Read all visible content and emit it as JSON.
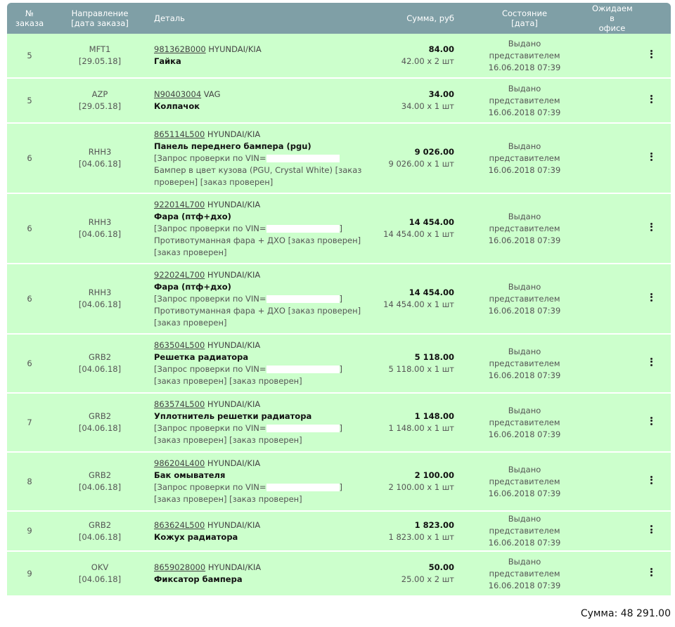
{
  "header": {
    "num": "№\nзаказа",
    "num_l1": "№",
    "num_l2": "заказа",
    "dir_l1": "Направление",
    "dir_l2": "[дата заказа]",
    "part": "Деталь",
    "sum": "Сумма, руб",
    "state_l1": "Состояние",
    "state_l2": "[дата]",
    "wait_l1": "Ожидаем в",
    "wait_l2": "офисе"
  },
  "rows": [
    {
      "num": "5",
      "dir": "MFT1",
      "date": "[29.05.18]",
      "pn": "981362B000",
      "brand": " HYUNDAI/KIA",
      "name": "Гайка",
      "note": "",
      "sum": "84.00",
      "qty": "42.00 x 2 шт",
      "s1": "Выдано",
      "s2": "представителем",
      "s3": "16.06.2018 07:39"
    },
    {
      "num": "5",
      "dir": "AZP",
      "date": "[29.05.18]",
      "pn": "N90403004",
      "brand": " VAG",
      "name": "Колпачок",
      "note": "",
      "sum": "34.00",
      "qty": "34.00 x 1 шт",
      "s1": "Выдано",
      "s2": "представителем",
      "s3": "16.06.2018 07:39"
    },
    {
      "num": "6",
      "dir": "RHH3",
      "date": "[04.06.18]",
      "pn": "865114L500",
      "brand": " HYUNDAI/KIA",
      "name": "Панель переднего бампера (pgu)",
      "note_a": "[Запрос проверки по VIN=",
      "note_b": " Бампер в цвет кузова (PGU, Crystal White) [заказ проверен] [заказ проверен]",
      "sum": "9 026.00",
      "qty": "9 026.00 x 1 шт",
      "s1": "Выдано",
      "s2": "представителем",
      "s3": "16.06.2018 07:39"
    },
    {
      "num": "6",
      "dir": "RHH3",
      "date": "[04.06.18]",
      "pn": "922014L700",
      "brand": " HYUNDAI/KIA",
      "name": "Фара (птф+дхо)",
      "note_a": "[Запрос проверки по VIN=",
      "note_b": "] Противотуманная фара + ДХО [заказ проверен] [заказ проверен]",
      "sum": "14 454.00",
      "qty": "14 454.00 x 1 шт",
      "s1": "Выдано",
      "s2": "представителем",
      "s3": "16.06.2018 07:39"
    },
    {
      "num": "6",
      "dir": "RHH3",
      "date": "[04.06.18]",
      "pn": "922024L700",
      "brand": " HYUNDAI/KIA",
      "name": "Фара (птф+дхо)",
      "note_a": "[Запрос проверки по VIN=",
      "note_b": "] Противотуманная фара + ДХО [заказ проверен] [заказ проверен]",
      "sum": "14 454.00",
      "qty": "14 454.00 x 1 шт",
      "s1": "Выдано",
      "s2": "представителем",
      "s3": "16.06.2018 07:39"
    },
    {
      "num": "6",
      "dir": "GRB2",
      "date": "[04.06.18]",
      "pn": "863504L500",
      "brand": " HYUNDAI/KIA",
      "name": "Решетка радиатора",
      "note_a": "[Запрос проверки по VIN=",
      "note_b": "] [заказ проверен] [заказ проверен]",
      "sum": "5 118.00",
      "qty": "5 118.00 x 1 шт",
      "s1": "Выдано",
      "s2": "представителем",
      "s3": "16.06.2018 07:39"
    },
    {
      "num": "7",
      "dir": "GRB2",
      "date": "[04.06.18]",
      "pn": "863574L500",
      "brand": " HYUNDAI/KIA",
      "name": "Уплотнитель решетки радиатора",
      "note_a": "[Запрос проверки по VIN=",
      "note_b": "] [заказ проверен] [заказ проверен]",
      "sum": "1 148.00",
      "qty": "1 148.00 x 1 шт",
      "s1": "Выдано",
      "s2": "представителем",
      "s3": "16.06.2018 07:39"
    },
    {
      "num": "8",
      "dir": "GRB2",
      "date": "[04.06.18]",
      "pn": "986204L400",
      "brand": " HYUNDAI/KIA",
      "name": "Бак омывателя",
      "note_a": "[Запрос проверки по VIN=",
      "note_b": "] [заказ проверен] [заказ проверен]",
      "sum": "2 100.00",
      "qty": "2 100.00 x 1 шт",
      "s1": "Выдано",
      "s2": "представителем",
      "s3": "16.06.2018 07:39"
    },
    {
      "num": "9",
      "dir": "GRB2",
      "date": "[04.06.18]",
      "pn": "863624L500",
      "brand": " HYUNDAI/KIA",
      "name": "Кожух радиатора",
      "note": "",
      "sum": "1 823.00",
      "qty": "1 823.00 x 1 шт",
      "s1": "Выдано",
      "s2": "представителем",
      "s3": "16.06.2018 07:39"
    },
    {
      "num": "9",
      "dir": "OKV",
      "date": "[04.06.18]",
      "pn": "8659028000",
      "brand": " HYUNDAI/KIA",
      "name": "Фиксатор бампера",
      "note": "",
      "sum": "50.00",
      "qty": "25.00 x 2 шт",
      "s1": "Выдано",
      "s2": "представителем",
      "s3": "16.06.2018 07:39"
    }
  ],
  "total": "Сумма: 48 291.00",
  "menu_icon": "kebab-menu-icon"
}
